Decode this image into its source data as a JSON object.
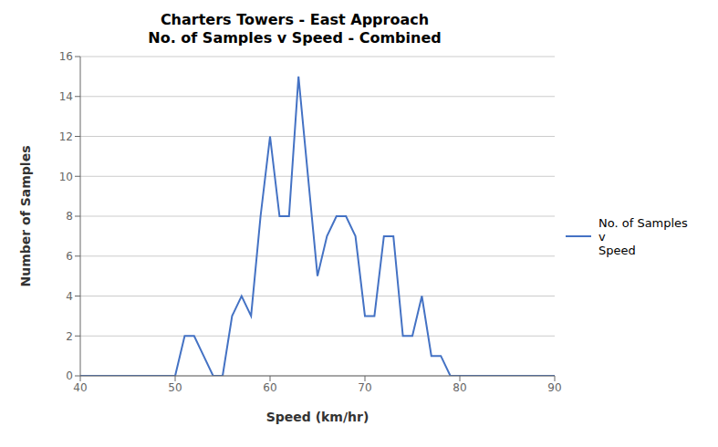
{
  "chart_data": {
    "type": "line",
    "title": "Charters Towers - East Approach",
    "subtitle": "No. of Samples v Speed - Combined",
    "xlabel": "Speed (km/hr)",
    "ylabel": "Number of Samples",
    "x": [
      40,
      48,
      50,
      51,
      52,
      53,
      54,
      55,
      56,
      57,
      58,
      59,
      60,
      61,
      62,
      63,
      64,
      65,
      66,
      67,
      68,
      69,
      70,
      71,
      72,
      73,
      74,
      75,
      76,
      77,
      78,
      79,
      80,
      90
    ],
    "series": [
      {
        "name": "No. of Samples v\nSpeed",
        "color": "#4472C4",
        "values": [
          0,
          0,
          0,
          2,
          2,
          1,
          0,
          0,
          3,
          4,
          3,
          8,
          12,
          8,
          8,
          15,
          10,
          5,
          7,
          8,
          8,
          7,
          3,
          3,
          7,
          7,
          2,
          2,
          4,
          1,
          1,
          0,
          0,
          0
        ]
      }
    ],
    "xlim": [
      40,
      90
    ],
    "ylim": [
      0,
      16
    ],
    "xticks": [
      40,
      50,
      60,
      70,
      80,
      90
    ],
    "yticks": [
      0,
      2,
      4,
      6,
      8,
      10,
      12,
      14,
      16
    ],
    "grid": "y",
    "legend": "right"
  }
}
